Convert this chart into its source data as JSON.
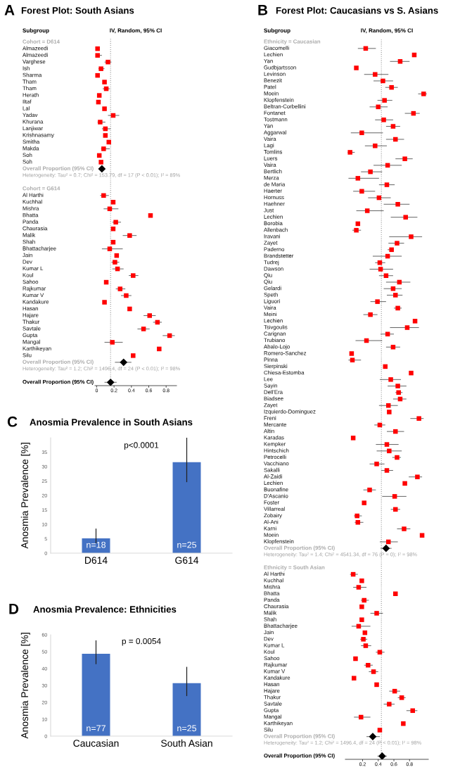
{
  "chart_data": [
    {
      "type": "scatter",
      "orientation": "horizontal",
      "title": "Forest Plot: South Asians",
      "xlabel": "IV, Random, 95% CI",
      "ylabel": "Subgroup",
      "xlim": [
        -0.02,
        0.92
      ],
      "xticks": [
        0,
        0.2,
        0.4,
        0.6,
        0.8
      ],
      "categories": [
        "Cohort = D614",
        "Almazeedi",
        "Almazeedi",
        "Varghese",
        "Ish",
        "Sharma",
        "Tham",
        "Tham",
        "Herath",
        "Iltaf",
        "Lal",
        "Yadav",
        "Khurana",
        "Lanjiwar",
        "Krishnasamy",
        "Smitha",
        "Makda",
        "Soh",
        "Soh",
        "Overall Proportion (95% CI)",
        "Heterogeneity: Tau² = 0.7; Chi² = 153.79, df = 17 (P < 0.01); I² = 89%",
        null,
        "Cohort = G614",
        "Al Harthi",
        "Kuchhal",
        "Mishra",
        "Bhatta",
        "Panda",
        "Chaurasia",
        "Malik",
        "Shah",
        "Bhattacharjee",
        "Jain",
        "Dev",
        "Kumar L",
        "Koul",
        "Sahoo",
        "Rajkumar",
        "Kumar V",
        "Kandakure",
        "Hasan",
        "Hajare",
        "Thakur",
        "Savtale",
        "Gupta",
        "Mangal",
        "Karthikeyan",
        "Silu",
        "Overall Proportion (95% CI)",
        "Heterogeneity: Tau² = 1.2; Chi² = 1496.4, df = 24 (P < 0.01); I² = 98%",
        null,
        "Overall Proportion (95% CI)"
      ],
      "series": [
        {
          "color": "#ff0000",
          "marker": "square",
          "values": [
            null,
            0.01,
            0.01,
            0.13,
            0.05,
            0.01,
            0.09,
            0.11,
            0.03,
            0.02,
            0.09,
            0.19,
            0.04,
            0.1,
            0.1,
            0.14,
            0.08,
            0.03,
            0.05,
            null,
            null,
            null,
            null,
            0.08,
            0.19,
            0.15,
            0.62,
            0.22,
            0.19,
            0.38,
            0.19,
            0.15,
            0.23,
            0.21,
            0.24,
            0.42,
            0.11,
            0.27,
            0.34,
            0.09,
            0.38,
            0.61,
            0.7,
            0.54,
            0.84,
            0.18,
            0.72,
            0.42,
            null,
            null,
            null,
            null
          ],
          "errors": [
            null,
            null,
            [
              0,
              0.06
            ],
            [
              0.09,
              0.17
            ],
            [
              0.02,
              0.09
            ],
            null,
            null,
            [
              0.07,
              0.15
            ],
            null,
            null,
            null,
            [
              0.13,
              0.26
            ],
            [
              0.01,
              0.1
            ],
            [
              0.06,
              0.16
            ],
            null,
            null,
            [
              0.05,
              0.15
            ],
            null,
            null,
            null,
            null,
            null,
            null,
            [
              0.04,
              0.14
            ],
            null,
            [
              0.08,
              0.25
            ],
            null,
            [
              0.18,
              0.28
            ],
            null,
            [
              0.3,
              0.46
            ],
            null,
            [
              0.06,
              0.3
            ],
            null,
            [
              0.17,
              0.26
            ],
            [
              0.18,
              0.31
            ],
            [
              0.37,
              0.48
            ],
            null,
            [
              0.22,
              0.33
            ],
            [
              0.28,
              0.4
            ],
            null,
            null,
            [
              0.54,
              0.68
            ],
            [
              0.65,
              0.75
            ],
            [
              0.47,
              0.61
            ],
            [
              0.76,
              0.9
            ],
            [
              0.09,
              0.3
            ],
            null,
            null,
            null,
            null,
            null,
            null
          ]
        },
        {
          "color": "#000000",
          "marker": "diamond",
          "values": [
            null,
            null,
            null,
            null,
            null,
            null,
            null,
            null,
            null,
            null,
            null,
            null,
            null,
            null,
            null,
            null,
            null,
            null,
            null,
            0.06,
            null,
            null,
            null,
            null,
            null,
            null,
            null,
            null,
            null,
            null,
            null,
            null,
            null,
            null,
            null,
            null,
            null,
            null,
            null,
            null,
            null,
            null,
            null,
            null,
            null,
            null,
            null,
            null,
            0.31,
            null,
            null,
            0.16
          ],
          "errors": [
            null,
            null,
            null,
            null,
            null,
            null,
            null,
            null,
            null,
            null,
            null,
            null,
            null,
            null,
            null,
            null,
            null,
            null,
            null,
            [
              0.05,
              0.08
            ],
            null,
            null,
            null,
            null,
            null,
            null,
            null,
            null,
            null,
            null,
            null,
            null,
            null,
            null,
            null,
            null,
            null,
            null,
            null,
            null,
            null,
            null,
            null,
            null,
            null,
            null,
            null,
            null,
            [
              0.21,
              0.4
            ],
            null,
            null,
            [
              0.09,
              0.23
            ]
          ]
        }
      ],
      "ref_lines": [
        {
          "axis": "x",
          "value": 0.16,
          "color": "#999999",
          "line_style": "dotted"
        }
      ],
      "annotations": [
        "A"
      ]
    },
    {
      "type": "scatter",
      "orientation": "horizontal",
      "title": "Forest Plot: Caucasians vs S. Asians",
      "xlabel": "IV, Random, 95% CI",
      "ylabel": "Subgroup",
      "xlim": [
        -0.02,
        1.04
      ],
      "xticks": [
        0.2,
        0.4,
        0.6,
        0.8
      ],
      "categories": [
        "Ethnicity = Caucasian",
        "Giacomelli",
        "Lechien",
        "Yan",
        "Gudbjartsson",
        "Levinson",
        "Benezit",
        "Patel",
        "Moein",
        "Klopfenstein",
        "Beltran-Corbellini",
        "Fontanet",
        "Tostmann",
        "Yan",
        "Aggarwal",
        "Vaira",
        "Lagi",
        "Tomlins",
        "Luers",
        "Vaira",
        "Bertlich",
        "Merza",
        "de Maria",
        "Haerter",
        "Hornuss",
        "Haehner",
        "Just",
        "Lechien",
        "Borobia",
        "Allenbach",
        "Iravani",
        "Zayet",
        "Paderno",
        "Brandstetter",
        "Tudrej",
        "Dawson",
        "Qiu",
        "Qiu",
        "Gelardi",
        "Speth",
        "Liguori",
        "Vaira",
        "Meini",
        "Lechien",
        "Tsivgoulis",
        "Carignan",
        "Trubiano",
        "Abalo-Lojo",
        "Romero-Sanchez",
        "Pinna",
        "Sierpinski",
        "Chiesa-Estomba",
        "Lee",
        "Sayin",
        "Dell'Era",
        "Biadsee",
        "Zayet",
        "Izquierdo-Dominguez",
        "Freni",
        "Mercante",
        "Altin",
        "Karadas",
        "Kempker",
        "Hintschich",
        "Petrocelli",
        "Vacchiano",
        "Sakalli",
        "Al-Zaidi",
        "Lechien",
        "Buonafine",
        "D'Ascanio",
        "Foster",
        "Villarreal",
        "Zobairy",
        "Al-Ani",
        "Karni",
        "Moein",
        "Klopfenstein",
        "Overall Proportion (95% CI)",
        "Heterogeneity: Tau² = 1.4; Chi² = 4541.34, df = 76 (P = 0); I² = 98%",
        null,
        "Ethnicity = South Asian",
        "Al Harthi",
        "Kuchhal",
        "Mishra",
        "Bhatta",
        "Panda",
        "Chaurasia",
        "Malik",
        "Shah",
        "Bhattacharjee",
        "Jain",
        "Dev",
        "Kumar L",
        "Koul",
        "Sahoo",
        "Rajkumar",
        "Kumar V",
        "Kandakure",
        "Hasan",
        "Hajare",
        "Thakur",
        "Savtale",
        "Gupta",
        "Mangal",
        "Karthikeyan",
        "Silu",
        "Overall Proportion (95% CI)",
        "Heterogeneity: Tau² = 1.2; Chi² = 1496.4, df = 24 (P < 0.01); I² = 98%",
        null,
        "Overall Proportion (95% CI)"
      ],
      "series": [
        {
          "color": "#ff0000",
          "marker": "square",
          "values": [
            null,
            0.24,
            0.86,
            0.68,
            0.12,
            0.36,
            0.46,
            0.57,
            0.98,
            0.48,
            0.4,
            0.85,
            0.47,
            0.59,
            0.19,
            0.62,
            0.36,
            0.04,
            0.74,
            0.52,
            0.3,
            0.14,
            0.51,
            0.19,
            0.41,
            0.65,
            0.26,
            0.75,
            0.14,
            0.12,
            0.82,
            0.64,
            0.57,
            0.52,
            0.42,
            0.43,
            0.5,
            0.67,
            0.59,
            0.62,
            0.39,
            0.65,
            0.3,
            0.87,
            0.77,
            0.52,
            0.25,
            0.59,
            0.06,
            0.07,
            0.49,
            0.82,
            0.56,
            0.65,
            0.66,
            0.68,
            0.53,
            0.54,
            0.92,
            0.42,
            0.62,
            0.08,
            0.51,
            0.54,
            0.64,
            0.38,
            0.51,
            0.9,
            0.74,
            0.29,
            0.61,
            0.22,
            0.62,
            0.13,
            0.14,
            0.73,
            0.96,
            0.53,
            null,
            null,
            null,
            null,
            0.08,
            0.19,
            0.15,
            0.62,
            0.22,
            0.19,
            0.38,
            0.19,
            0.15,
            0.23,
            0.21,
            0.24,
            0.42,
            0.11,
            0.27,
            0.34,
            0.09,
            0.38,
            0.61,
            0.7,
            0.54,
            0.84,
            0.18,
            0.72,
            0.42,
            null,
            null,
            null,
            null
          ],
          "errors": [
            null,
            [
              0.14,
              0.37
            ],
            null,
            [
              0.55,
              0.8
            ],
            null,
            [
              0.22,
              0.53
            ],
            [
              0.34,
              0.59
            ],
            [
              0.49,
              0.65
            ],
            [
              0.91,
              1.02
            ],
            [
              0.39,
              0.58
            ],
            [
              0.29,
              0.52
            ],
            [
              0.74,
              0.93
            ],
            [
              0.36,
              0.59
            ],
            [
              0.5,
              0.68
            ],
            [
              0.05,
              0.46
            ],
            [
              0.5,
              0.73
            ],
            [
              0.23,
              0.51
            ],
            [
              0.01,
              0.1
            ],
            [
              0.62,
              0.84
            ],
            [
              0.34,
              0.7
            ],
            [
              0.18,
              0.45
            ],
            [
              0.02,
              0.41
            ],
            [
              0.41,
              0.61
            ],
            [
              0.08,
              0.36
            ],
            [
              0.27,
              0.56
            ],
            [
              0.47,
              0.8
            ],
            [
              0.12,
              0.47
            ],
            [
              0.56,
              0.9
            ],
            null,
            [
              0.07,
              0.18
            ],
            [
              0.54,
              0.96
            ],
            [
              0.53,
              0.73
            ],
            [
              0.52,
              0.6
            ],
            [
              0.33,
              0.7
            ],
            [
              0.36,
              0.49
            ],
            [
              0.29,
              0.59
            ],
            [
              0.41,
              0.59
            ],
            [
              0.5,
              0.81
            ],
            [
              0.47,
              0.7
            ],
            [
              0.51,
              0.71
            ],
            [
              0.3,
              0.5
            ],
            [
              0.6,
              0.7
            ],
            [
              0.21,
              0.39
            ],
            null,
            [
              0.55,
              0.92
            ],
            [
              0.43,
              0.6
            ],
            [
              0.11,
              0.45
            ],
            [
              0.5,
              0.68
            ],
            null,
            [
              0.02,
              0.18
            ],
            null,
            null,
            [
              0.42,
              0.69
            ],
            [
              0.52,
              0.76
            ],
            [
              0.62,
              0.71
            ],
            [
              0.59,
              0.76
            ],
            [
              0.41,
              0.65
            ],
            null,
            [
              0.81,
              0.98
            ],
            [
              0.35,
              0.49
            ],
            [
              0.51,
              0.73
            ],
            null,
            [
              0.37,
              0.66
            ],
            [
              0.38,
              0.7
            ],
            [
              0.58,
              0.69
            ],
            [
              0.29,
              0.48
            ],
            [
              0.44,
              0.59
            ],
            [
              0.79,
              0.96
            ],
            null,
            [
              0.21,
              0.37
            ],
            [
              0.45,
              0.76
            ],
            null,
            [
              0.56,
              0.68
            ],
            [
              0.09,
              0.19
            ],
            [
              0.1,
              0.21
            ],
            [
              0.64,
              0.81
            ],
            null,
            [
              0.42,
              0.65
            ],
            null,
            null,
            null,
            null,
            [
              0.04,
              0.14
            ],
            null,
            [
              0.08,
              0.25
            ],
            null,
            [
              0.18,
              0.28
            ],
            null,
            [
              0.3,
              0.46
            ],
            null,
            [
              0.06,
              0.3
            ],
            null,
            [
              0.17,
              0.26
            ],
            [
              0.18,
              0.31
            ],
            [
              0.37,
              0.48
            ],
            null,
            [
              0.22,
              0.33
            ],
            [
              0.28,
              0.4
            ],
            null,
            null,
            [
              0.54,
              0.68
            ],
            [
              0.65,
              0.75
            ],
            [
              0.47,
              0.61
            ],
            [
              0.76,
              0.9
            ],
            [
              0.09,
              0.3
            ],
            null,
            null,
            null,
            null,
            null,
            null
          ]
        },
        {
          "color": "#000000",
          "marker": "diamond",
          "values": [
            null,
            null,
            null,
            null,
            null,
            null,
            null,
            null,
            null,
            null,
            null,
            null,
            null,
            null,
            null,
            null,
            null,
            null,
            null,
            null,
            null,
            null,
            null,
            null,
            null,
            null,
            null,
            null,
            null,
            null,
            null,
            null,
            null,
            null,
            null,
            null,
            null,
            null,
            null,
            null,
            null,
            null,
            null,
            null,
            null,
            null,
            null,
            null,
            null,
            null,
            null,
            null,
            null,
            null,
            null,
            null,
            null,
            null,
            null,
            null,
            null,
            null,
            null,
            null,
            null,
            null,
            null,
            null,
            null,
            null,
            null,
            null,
            null,
            null,
            null,
            null,
            null,
            null,
            0.5,
            null,
            null,
            null,
            null,
            null,
            null,
            null,
            null,
            null,
            null,
            null,
            null,
            null,
            null,
            null,
            null,
            null,
            null,
            null,
            null,
            null,
            null,
            null,
            null,
            null,
            null,
            null,
            null,
            0.33,
            null,
            null,
            0.45
          ],
          "errors": [
            null,
            null,
            null,
            null,
            null,
            null,
            null,
            null,
            null,
            null,
            null,
            null,
            null,
            null,
            null,
            null,
            null,
            null,
            null,
            null,
            null,
            null,
            null,
            null,
            null,
            null,
            null,
            null,
            null,
            null,
            null,
            null,
            null,
            null,
            null,
            null,
            null,
            null,
            null,
            null,
            null,
            null,
            null,
            null,
            null,
            null,
            null,
            null,
            null,
            null,
            null,
            null,
            null,
            null,
            null,
            null,
            null,
            null,
            null,
            null,
            null,
            null,
            null,
            null,
            null,
            null,
            null,
            null,
            null,
            null,
            null,
            null,
            null,
            null,
            null,
            null,
            null,
            null,
            [
              0.43,
              0.57
            ],
            null,
            null,
            null,
            null,
            null,
            null,
            null,
            null,
            null,
            null,
            null,
            null,
            null,
            null,
            null,
            null,
            null,
            null,
            null,
            null,
            null,
            null,
            null,
            null,
            null,
            null,
            null,
            null,
            [
              0.25,
              0.42
            ],
            null,
            null,
            [
              0.39,
              0.51
            ]
          ]
        }
      ],
      "ref_lines": [
        {
          "axis": "x",
          "value": 0.44,
          "color": "#999999",
          "line_style": "dotted"
        }
      ],
      "annotations": [
        "B"
      ]
    },
    {
      "type": "bar",
      "title": "Anosmia Prevalence in South Asians",
      "ylabel": "Anosmia Prevalence [%]",
      "categories": [
        "D614",
        "G614"
      ],
      "series": [
        {
          "color": "#4472c4",
          "values": [
            5.1,
            31.5
          ],
          "errors": [
            [
              3.4,
              8.5
            ],
            [
              24.6,
              40
            ]
          ]
        }
      ],
      "ylim": [
        0,
        40
      ],
      "yticks": [
        0,
        5,
        10,
        15,
        20,
        25,
        30,
        35
      ],
      "annotations": [
        "C",
        "p<0.0001",
        "n=18",
        "n=25"
      ]
    },
    {
      "type": "bar",
      "title": "Anosmia Prevalence: Ethnicities",
      "ylabel": "Anosmia Prevalence [%]",
      "categories": [
        "Caucasian",
        "South Asian"
      ],
      "series": [
        {
          "color": "#4472c4",
          "values": [
            48.7,
            31.4
          ],
          "errors": [
            [
              42.6,
              56.7
            ],
            [
              23.7,
              41.0
            ]
          ]
        }
      ],
      "ylim": [
        0,
        60
      ],
      "yticks": [
        0,
        10,
        20,
        30,
        40,
        50,
        60
      ],
      "annotations": [
        "D",
        "p = 0.0054",
        "n=77",
        "n=25"
      ]
    }
  ]
}
